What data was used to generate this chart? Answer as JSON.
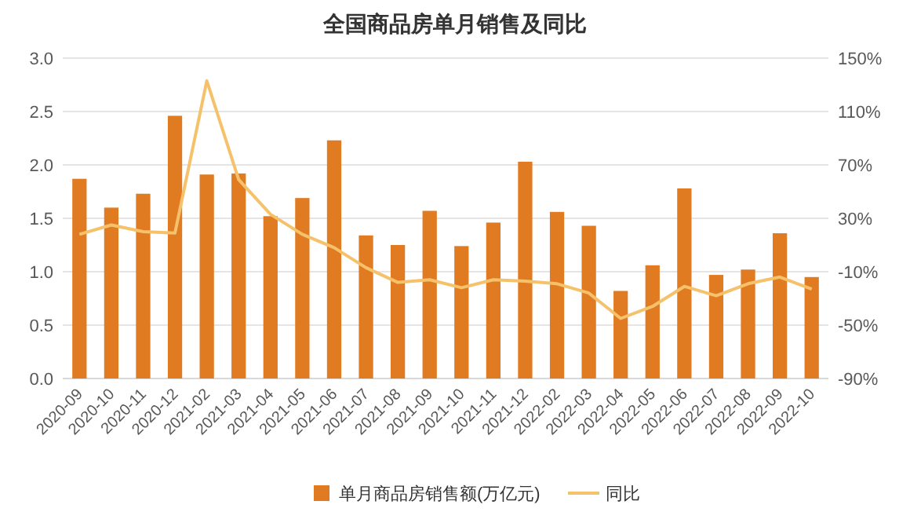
{
  "chart_data": {
    "type": "bar",
    "title": "全国商品房单月销售及同比",
    "categories": [
      "2020-09",
      "2020-10",
      "2020-11",
      "2020-12",
      "2021-02",
      "2021-03",
      "2021-04",
      "2021-05",
      "2021-06",
      "2021-07",
      "2021-08",
      "2021-09",
      "2021-10",
      "2021-11",
      "2021-12",
      "2022-02",
      "2022-03",
      "2022-04",
      "2022-05",
      "2022-06",
      "2022-07",
      "2022-08",
      "2022-09",
      "2022-10"
    ],
    "series": [
      {
        "name": "单月商品房销售额(万亿元)",
        "color": "#e07b22",
        "values": [
          1.87,
          1.6,
          1.73,
          2.46,
          1.91,
          1.92,
          1.52,
          1.69,
          2.23,
          1.34,
          1.25,
          1.57,
          1.24,
          1.46,
          2.03,
          1.56,
          1.43,
          0.82,
          1.06,
          1.78,
          0.97,
          1.02,
          1.36,
          0.95
        ]
      },
      {
        "name": "同比",
        "type": "line",
        "axis": "y2",
        "color": "#f5c26b",
        "values": [
          18,
          25,
          20,
          19,
          133,
          59,
          33,
          18,
          8,
          -7,
          -18,
          -16,
          -22,
          -16,
          -17,
          -19,
          -26,
          -45,
          -36,
          -21,
          -28,
          -19,
          -14,
          -23
        ]
      }
    ],
    "ylim": [
      0,
      3
    ],
    "yticks": [
      {
        "value": 0,
        "label": "0.0"
      },
      {
        "value": 0.5,
        "label": "0.5"
      },
      {
        "value": 1,
        "label": "1.0"
      },
      {
        "value": 1.5,
        "label": "1.5"
      },
      {
        "value": 2,
        "label": "2.0"
      },
      {
        "value": 2.5,
        "label": "2.5"
      },
      {
        "value": 3,
        "label": "3.0"
      }
    ],
    "y2lim": [
      -90,
      150
    ],
    "y2ticks": [
      {
        "value": -90,
        "label": "-90%"
      },
      {
        "value": -50,
        "label": "-50%"
      },
      {
        "value": -10,
        "label": "-10%"
      },
      {
        "value": 30,
        "label": "30%"
      },
      {
        "value": 70,
        "label": "70%"
      },
      {
        "value": 110,
        "label": "110%"
      },
      {
        "value": 150,
        "label": "150%"
      }
    ],
    "grid": "y",
    "legend": "bottom",
    "marker": "none",
    "line_style": "solid"
  }
}
